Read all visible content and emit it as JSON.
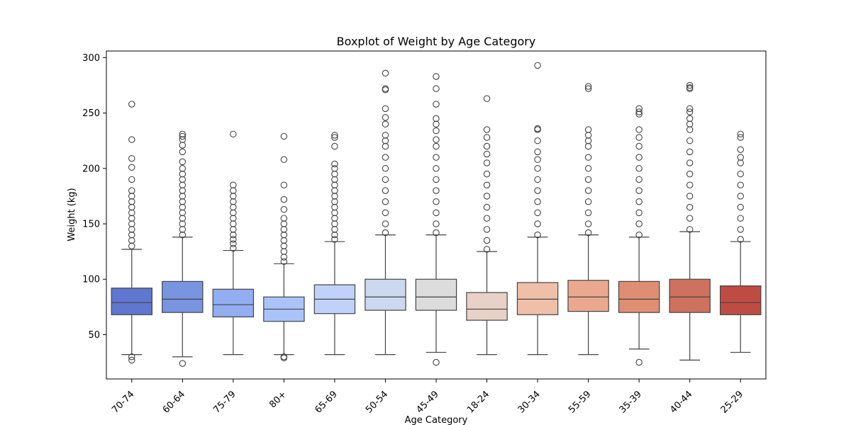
{
  "chart_data": {
    "type": "boxplot",
    "title": "Boxplot of Weight by Age Category",
    "xlabel": "Age Category",
    "ylabel": "Weight (kg)",
    "ylim": [
      10,
      306
    ],
    "yticks": [
      50,
      100,
      150,
      200,
      250,
      300
    ],
    "grid": false,
    "categories": [
      "70-74",
      "60-64",
      "75-79",
      "80+",
      "65-69",
      "50-54",
      "45-49",
      "18-24",
      "30-34",
      "55-59",
      "35-39",
      "40-44",
      "25-29"
    ],
    "colors": [
      "#6077cf",
      "#7994e1",
      "#93adf1",
      "#abc3fb",
      "#c0d2fa",
      "#cbd8ef",
      "#dcdcdc",
      "#e8d1c6",
      "#efbfaa",
      "#eaa98e",
      "#df8e73",
      "#ce715e",
      "#bf4c43"
    ],
    "boxes": [
      {
        "whisker_low": 32,
        "q1": 68,
        "median": 79,
        "q3": 92,
        "whisker_high": 127,
        "outliers": [
          27,
          30,
          130,
          135,
          140,
          145,
          150,
          155,
          160,
          165,
          170,
          175,
          180,
          190,
          201,
          209,
          226,
          258
        ]
      },
      {
        "whisker_low": 30,
        "q1": 70,
        "median": 82,
        "q3": 98,
        "whisker_high": 138,
        "outliers": [
          24,
          140,
          145,
          150,
          155,
          160,
          165,
          170,
          175,
          180,
          185,
          190,
          195,
          200,
          206,
          215,
          221,
          226,
          229,
          231
        ]
      },
      {
        "whisker_low": 32,
        "q1": 66,
        "median": 77,
        "q3": 91,
        "whisker_high": 126,
        "outliers": [
          128,
          132,
          136,
          140,
          145,
          150,
          155,
          160,
          165,
          170,
          175,
          180,
          185,
          231
        ]
      },
      {
        "whisker_low": 32,
        "q1": 62,
        "median": 73,
        "q3": 84,
        "whisker_high": 114,
        "outliers": [
          29,
          30,
          116,
          120,
          125,
          130,
          135,
          140,
          145,
          150,
          155,
          163,
          172,
          185,
          208,
          229
        ]
      },
      {
        "whisker_low": 32,
        "q1": 69,
        "median": 82,
        "q3": 95,
        "whisker_high": 134,
        "outliers": [
          136,
          140,
          145,
          150,
          155,
          160,
          165,
          170,
          175,
          180,
          185,
          190,
          195,
          200,
          204,
          220,
          228,
          230
        ]
      },
      {
        "whisker_low": 32,
        "q1": 72,
        "median": 84,
        "q3": 100,
        "whisker_high": 140,
        "outliers": [
          142,
          150,
          160,
          170,
          180,
          190,
          200,
          210,
          220,
          225,
          230,
          240,
          246,
          254,
          271,
          272,
          286
        ]
      },
      {
        "whisker_low": 34,
        "q1": 72,
        "median": 84,
        "q3": 100,
        "whisker_high": 140,
        "outliers": [
          25,
          142,
          150,
          160,
          170,
          180,
          190,
          200,
          210,
          220,
          226,
          234,
          240,
          245,
          258,
          272,
          283
        ]
      },
      {
        "whisker_low": 32,
        "q1": 63,
        "median": 73,
        "q3": 88,
        "whisker_high": 125,
        "outliers": [
          127,
          135,
          145,
          155,
          165,
          175,
          185,
          195,
          205,
          213,
          220,
          228,
          235,
          263
        ]
      },
      {
        "whisker_low": 32,
        "q1": 68,
        "median": 82,
        "q3": 97,
        "whisker_high": 138,
        "outliers": [
          140,
          150,
          160,
          170,
          180,
          190,
          200,
          208,
          215,
          225,
          235,
          236,
          293
        ]
      },
      {
        "whisker_low": 32,
        "q1": 71,
        "median": 84,
        "q3": 99,
        "whisker_high": 140,
        "outliers": [
          142,
          150,
          160,
          170,
          180,
          190,
          200,
          210,
          220,
          225,
          230,
          235,
          272,
          274
        ]
      },
      {
        "whisker_low": 37,
        "q1": 70,
        "median": 82,
        "q3": 98,
        "whisker_high": 138,
        "outliers": [
          25,
          140,
          150,
          160,
          170,
          180,
          190,
          200,
          210,
          220,
          228,
          235,
          249,
          251,
          254
        ]
      },
      {
        "whisker_low": 27,
        "q1": 70,
        "median": 84,
        "q3": 100,
        "whisker_high": 143,
        "outliers": [
          145,
          155,
          165,
          175,
          185,
          195,
          205,
          215,
          225,
          235,
          240,
          245,
          251,
          254,
          272,
          273,
          275
        ]
      },
      {
        "whisker_low": 34,
        "q1": 68,
        "median": 79,
        "q3": 94,
        "whisker_high": 134,
        "outliers": [
          136,
          145,
          155,
          165,
          175,
          185,
          195,
          205,
          210,
          217,
          228,
          231
        ]
      }
    ]
  }
}
